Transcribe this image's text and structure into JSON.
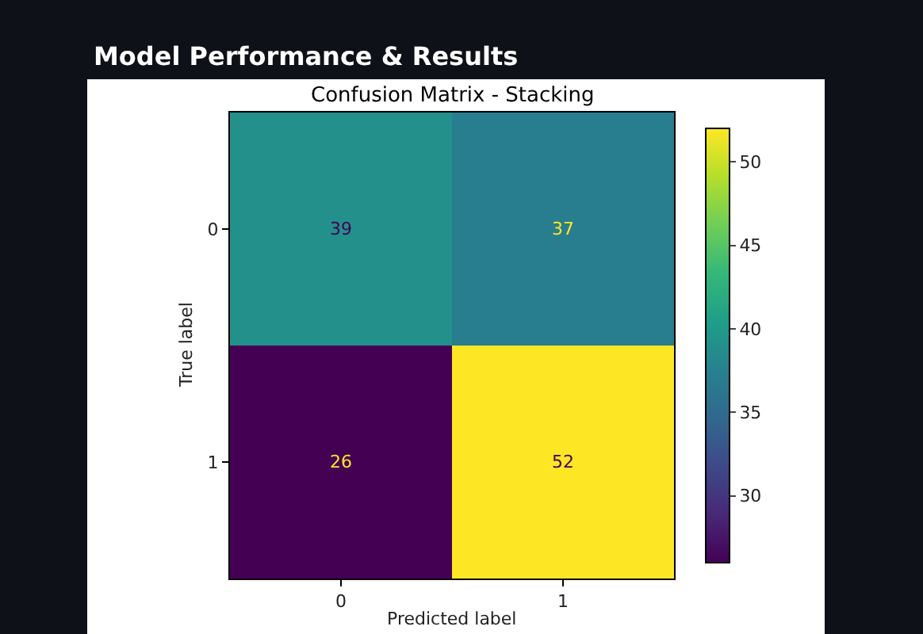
{
  "chart_data": {
    "type": "heatmap",
    "title": "Model Performance & Results",
    "subtitle": "Confusion Matrix - Stacking",
    "xlabel": "Predicted label",
    "ylabel": "True label",
    "categories": [
      "0",
      "1"
    ],
    "y_categories": [
      "0",
      "1"
    ],
    "cells": [
      [
        39,
        37
      ],
      [
        26,
        52
      ]
    ],
    "data_labels": true,
    "clim": [
      26,
      52
    ],
    "cticks": [
      30,
      35,
      40,
      45,
      50
    ]
  }
}
